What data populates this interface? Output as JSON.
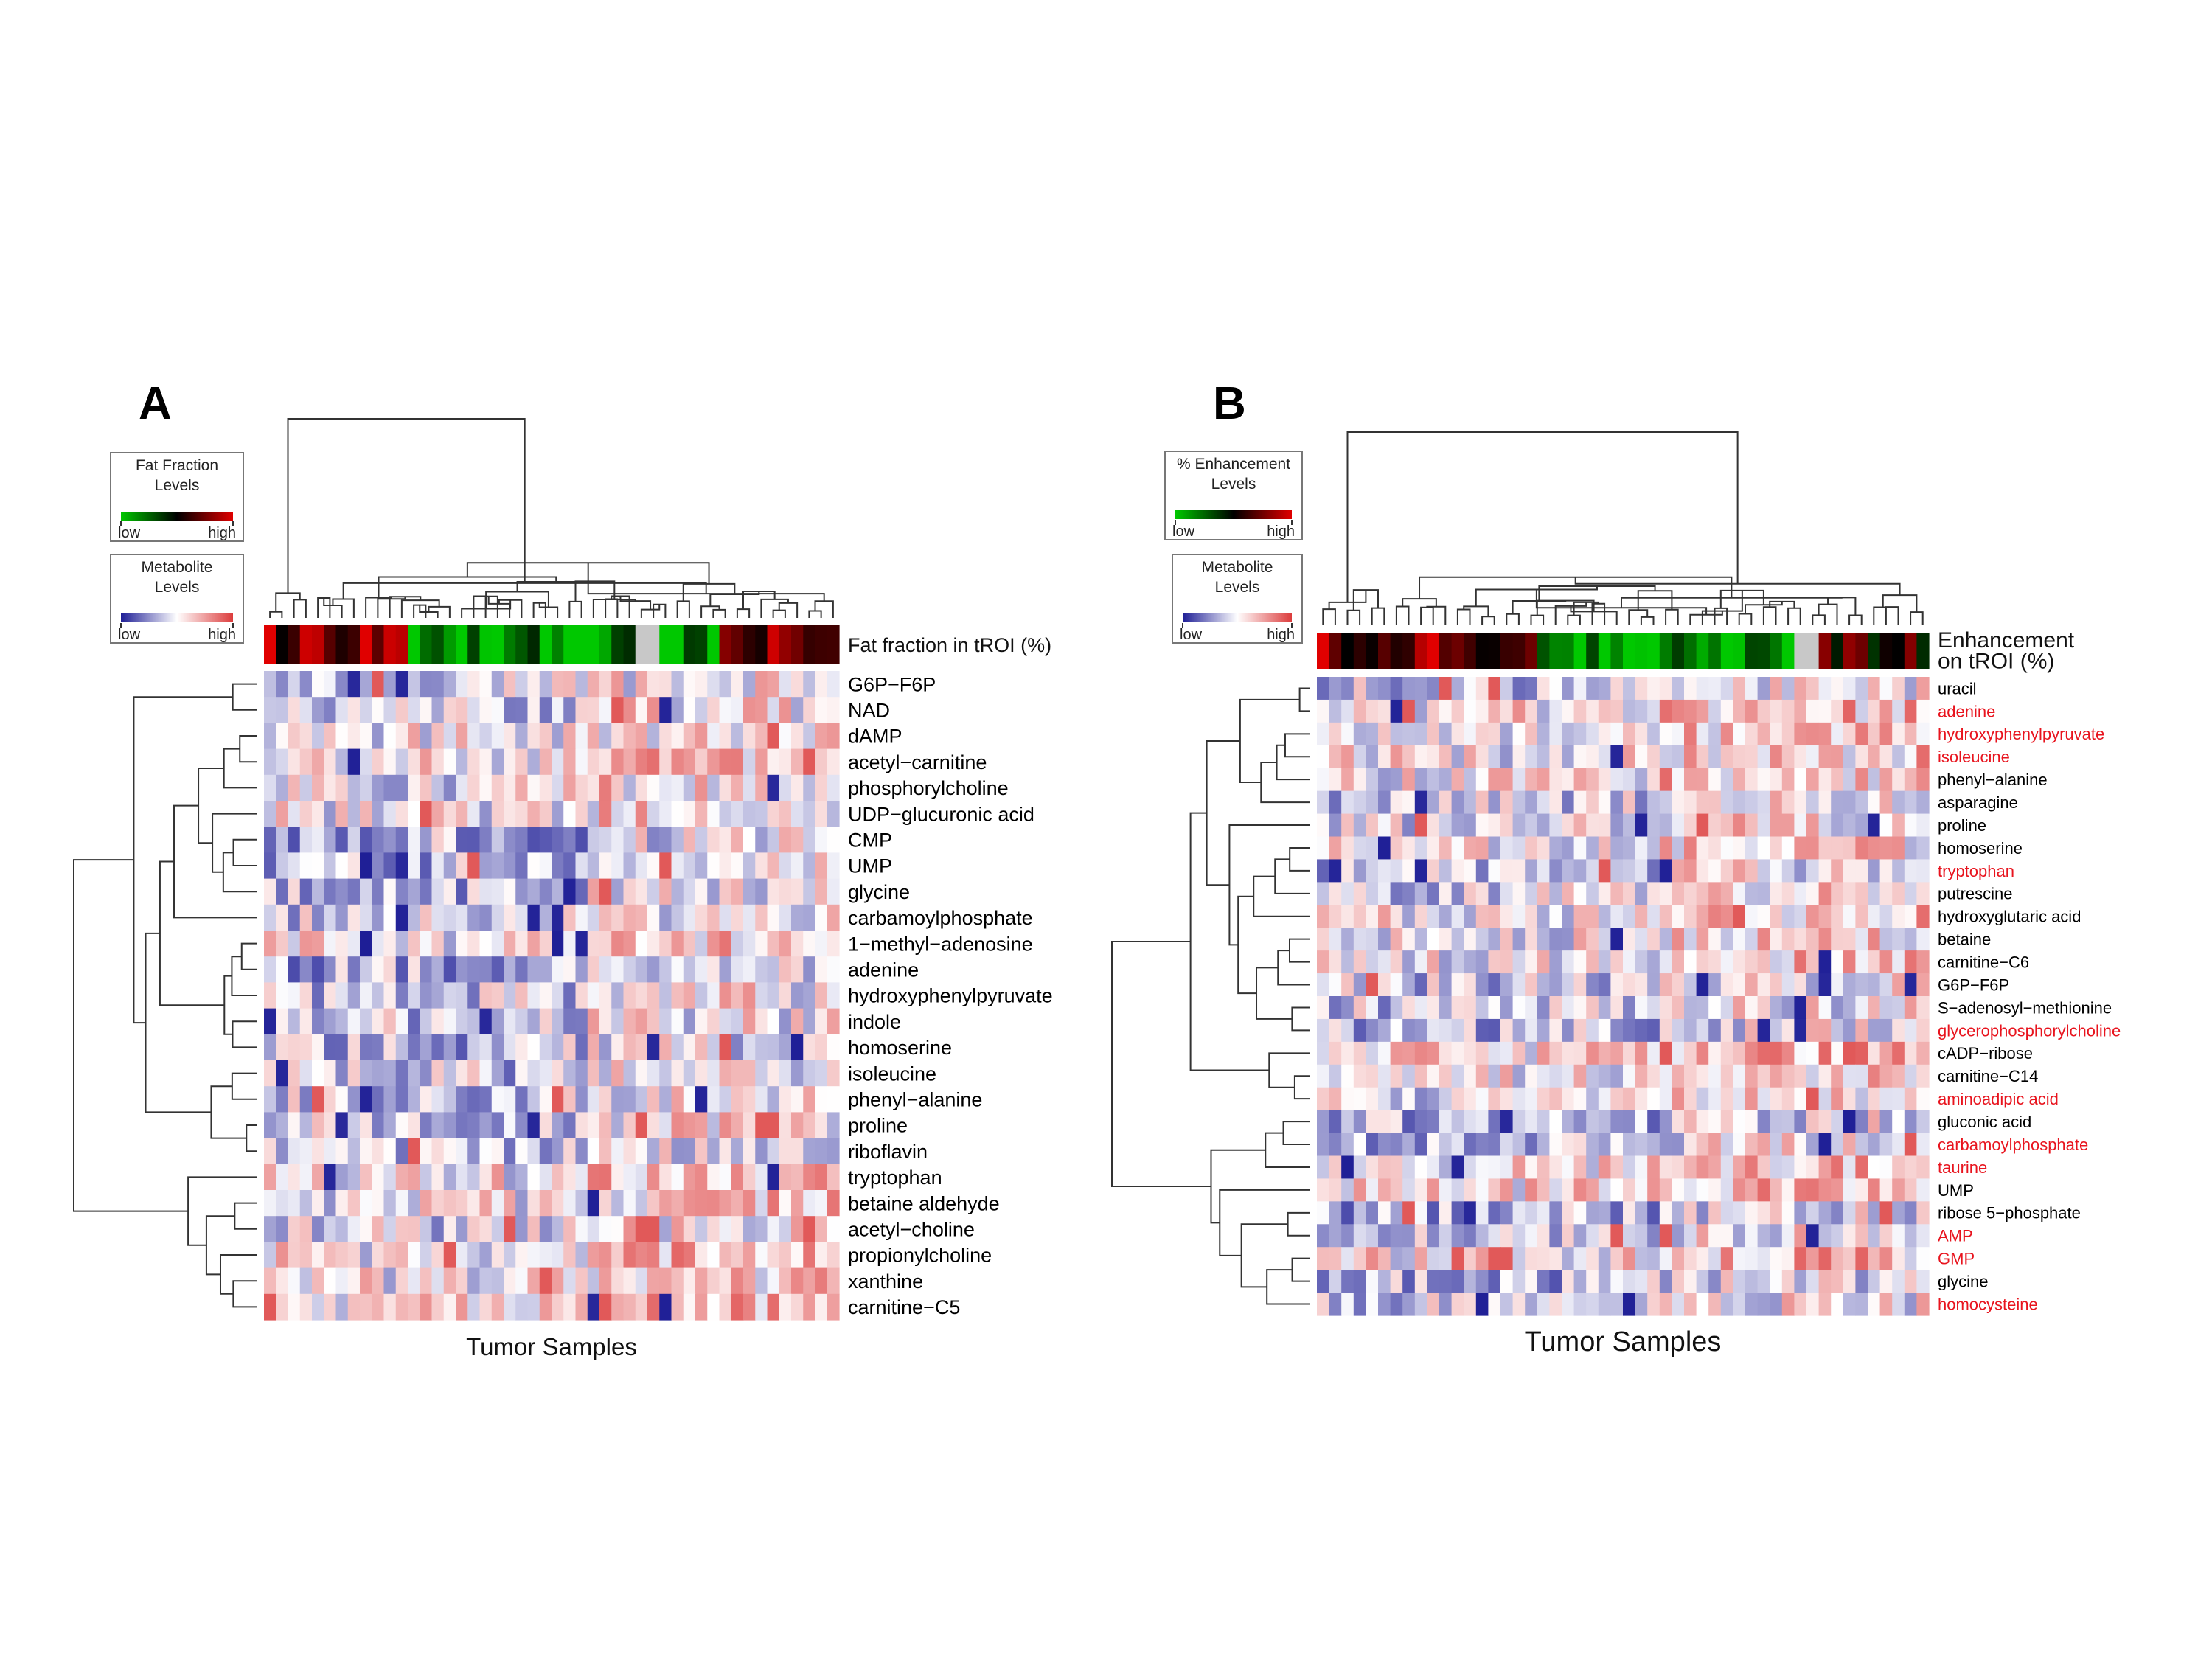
{
  "chart_data": [
    {
      "type": "heatmap",
      "panel": "A",
      "xlabel": "Tumor Samples",
      "annotation_label": "Fat fraction in tROI (%)",
      "legends": [
        {
          "title": "Fat Fraction Levels",
          "low": "low",
          "high": "high",
          "colors": [
            "#00c800",
            "#000000",
            "#e00000"
          ]
        },
        {
          "title": "Metabolite Levels",
          "low": "low",
          "high": "high",
          "colors": [
            "#1e1e96",
            "#ffffff",
            "#dc3c3c"
          ]
        }
      ],
      "n_samples": 48,
      "row_labels": [
        {
          "text": "G6P−F6P",
          "color": "#000000"
        },
        {
          "text": "NAD",
          "color": "#000000"
        },
        {
          "text": "dAMP",
          "color": "#000000"
        },
        {
          "text": "acetyl−carnitine",
          "color": "#000000"
        },
        {
          "text": "phosphorylcholine",
          "color": "#000000"
        },
        {
          "text": "UDP−glucuronic acid",
          "color": "#000000"
        },
        {
          "text": "CMP",
          "color": "#000000"
        },
        {
          "text": "UMP",
          "color": "#000000"
        },
        {
          "text": "glycine",
          "color": "#000000"
        },
        {
          "text": "carbamoylphosphate",
          "color": "#000000"
        },
        {
          "text": "1−methyl−adenosine",
          "color": "#000000"
        },
        {
          "text": "adenine",
          "color": "#000000"
        },
        {
          "text": "hydroxyphenylpyruvate",
          "color": "#000000"
        },
        {
          "text": "indole",
          "color": "#000000"
        },
        {
          "text": "homoserine",
          "color": "#000000"
        },
        {
          "text": "isoleucine",
          "color": "#000000"
        },
        {
          "text": "phenyl−alanine",
          "color": "#000000"
        },
        {
          "text": "proline",
          "color": "#000000"
        },
        {
          "text": "riboflavin",
          "color": "#000000"
        },
        {
          "text": "tryptophan",
          "color": "#000000"
        },
        {
          "text": "betaine aldehyde",
          "color": "#000000"
        },
        {
          "text": "acetyl−choline",
          "color": "#000000"
        },
        {
          "text": "propionylcholine",
          "color": "#000000"
        },
        {
          "text": "xanthine",
          "color": "#000000"
        },
        {
          "text": "carnitine−C5",
          "color": "#000000"
        }
      ]
    },
    {
      "type": "heatmap",
      "panel": "B",
      "xlabel": "Tumor Samples",
      "annotation_label": [
        "Enhancement",
        "on tROI (%)"
      ],
      "legends": [
        {
          "title": "% Enhancement Levels",
          "low": "low",
          "high": "high",
          "colors": [
            "#00c800",
            "#000000",
            "#e00000"
          ]
        },
        {
          "title": "Metabolite Levels",
          "low": "low",
          "high": "high",
          "colors": [
            "#1e1e96",
            "#ffffff",
            "#dc3c3c"
          ]
        }
      ],
      "n_samples": 50,
      "row_labels": [
        {
          "text": "uracil",
          "color": "#000000"
        },
        {
          "text": "adenine",
          "color": "#e8141e"
        },
        {
          "text": "hydroxyphenylpyruvate",
          "color": "#e8141e"
        },
        {
          "text": "isoleucine",
          "color": "#e8141e"
        },
        {
          "text": "phenyl−alanine",
          "color": "#000000"
        },
        {
          "text": "asparagine",
          "color": "#000000"
        },
        {
          "text": "proline",
          "color": "#000000"
        },
        {
          "text": "homoserine",
          "color": "#000000"
        },
        {
          "text": "tryptophan",
          "color": "#e8141e"
        },
        {
          "text": "putrescine",
          "color": "#000000"
        },
        {
          "text": "hydroxyglutaric acid",
          "color": "#000000"
        },
        {
          "text": "betaine",
          "color": "#000000"
        },
        {
          "text": "carnitine−C6",
          "color": "#000000"
        },
        {
          "text": "G6P−F6P",
          "color": "#000000"
        },
        {
          "text": "S−adenosyl−methionine",
          "color": "#000000"
        },
        {
          "text": "glycerophosphorylcholine",
          "color": "#e8141e"
        },
        {
          "text": "cADP−ribose",
          "color": "#000000"
        },
        {
          "text": "carnitine−C14",
          "color": "#000000"
        },
        {
          "text": "aminoadipic acid",
          "color": "#e8141e"
        },
        {
          "text": "gluconic acid",
          "color": "#000000"
        },
        {
          "text": "carbamoylphosphate",
          "color": "#e8141e"
        },
        {
          "text": "taurine",
          "color": "#e8141e"
        },
        {
          "text": "UMP",
          "color": "#000000"
        },
        {
          "text": "ribose 5−phosphate",
          "color": "#000000"
        },
        {
          "text": "AMP",
          "color": "#e8141e"
        },
        {
          "text": "GMP",
          "color": "#e8141e"
        },
        {
          "text": "glycine",
          "color": "#000000"
        },
        {
          "text": "homocysteine",
          "color": "#e8141e"
        }
      ]
    }
  ]
}
